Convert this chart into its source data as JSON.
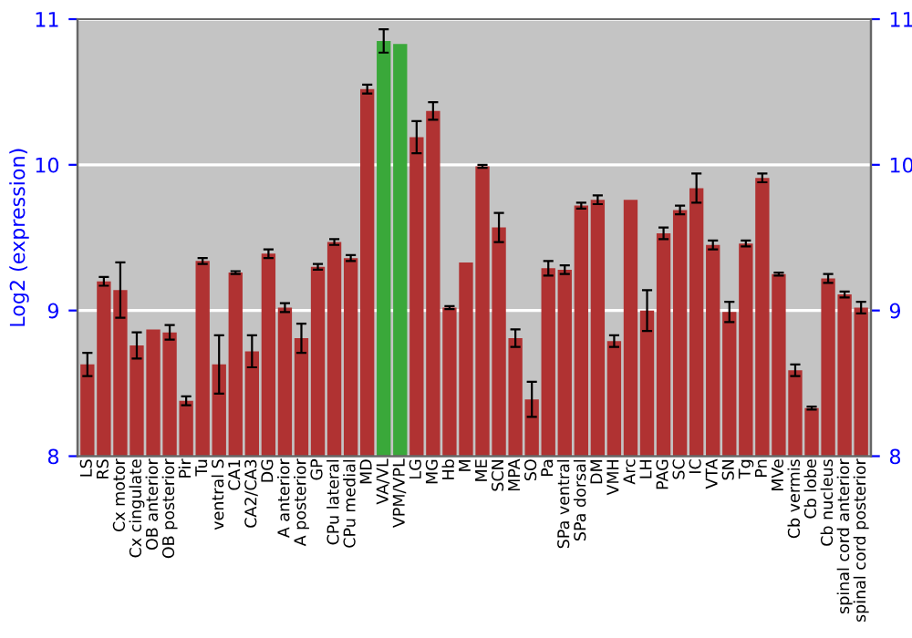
{
  "chart_data": {
    "type": "bar",
    "ylabel": "Log2 (expression)",
    "categories": [
      "LS",
      "RS",
      "Cx motor",
      "Cx cingulate",
      "OB anterior",
      "OB posterior",
      "Pir",
      "Tu",
      "ventral S",
      "CA1",
      "CA2/CA3",
      "DG",
      "A anterior",
      "A posterior",
      "GP",
      "CPu lateral",
      "CPu medial",
      "MD",
      "VA/VL",
      "VPM/VPL",
      "LG",
      "MG",
      "Hb",
      "M",
      "ME",
      "SCN",
      "MPA",
      "SO",
      "Pa",
      "SPa ventral",
      "SPa dorsal",
      "DM",
      "VMH",
      "Arc",
      "LH",
      "PAG",
      "SC",
      "IC",
      "VTA",
      "SN",
      "Tg",
      "Pn",
      "MVe",
      "Cb vermis",
      "Cb lobe",
      "Cb nucleus",
      "spinal cord anterior",
      "spinal cord posterior"
    ],
    "values": [
      8.63,
      9.2,
      9.14,
      8.76,
      8.87,
      8.85,
      8.38,
      9.34,
      8.63,
      9.26,
      8.72,
      9.39,
      9.02,
      8.81,
      9.3,
      9.47,
      9.36,
      10.52,
      10.85,
      10.83,
      10.19,
      10.37,
      9.02,
      9.33,
      9.99,
      9.57,
      8.81,
      8.39,
      9.29,
      9.28,
      9.72,
      9.76,
      8.79,
      9.76,
      9.0,
      9.53,
      9.69,
      9.84,
      9.45,
      8.99,
      9.46,
      9.91,
      9.25,
      8.59,
      8.33,
      9.22,
      9.11,
      9.02
    ],
    "errors": [
      0.08,
      0.03,
      0.19,
      0.09,
      null,
      0.05,
      0.03,
      0.02,
      0.2,
      0.01,
      0.11,
      0.03,
      0.03,
      0.1,
      0.02,
      0.02,
      0.02,
      0.03,
      0.08,
      null,
      0.11,
      0.06,
      0.01,
      null,
      0.01,
      0.1,
      0.06,
      0.12,
      0.05,
      0.03,
      0.02,
      0.03,
      0.04,
      null,
      0.14,
      0.04,
      0.03,
      0.1,
      0.03,
      0.07,
      0.02,
      0.03,
      0.01,
      0.04,
      0.01,
      0.03,
      0.02,
      0.04
    ],
    "colors": [
      "#b03232",
      "#b03232",
      "#b03232",
      "#b03232",
      "#b03232",
      "#b03232",
      "#b03232",
      "#b03232",
      "#b03232",
      "#b03232",
      "#b03232",
      "#b03232",
      "#b03232",
      "#b03232",
      "#b03232",
      "#b03232",
      "#b03232",
      "#b03232",
      "#3aa83a",
      "#3aa83a",
      "#b03232",
      "#b03232",
      "#b03232",
      "#b03232",
      "#b03232",
      "#b03232",
      "#b03232",
      "#b03232",
      "#b03232",
      "#b03232",
      "#b03232",
      "#b03232",
      "#b03232",
      "#b03232",
      "#b03232",
      "#b03232",
      "#b03232",
      "#b03232",
      "#b03232",
      "#b03232",
      "#b03232",
      "#b03232",
      "#b03232",
      "#b03232",
      "#b03232",
      "#b03232",
      "#b03232",
      "#b03232"
    ],
    "ylim": [
      8,
      11
    ],
    "yticks": [
      8,
      9,
      10,
      11
    ],
    "y2lim": [
      8,
      11
    ],
    "y2ticks": [
      8,
      9,
      10,
      11
    ],
    "grid": "y"
  }
}
